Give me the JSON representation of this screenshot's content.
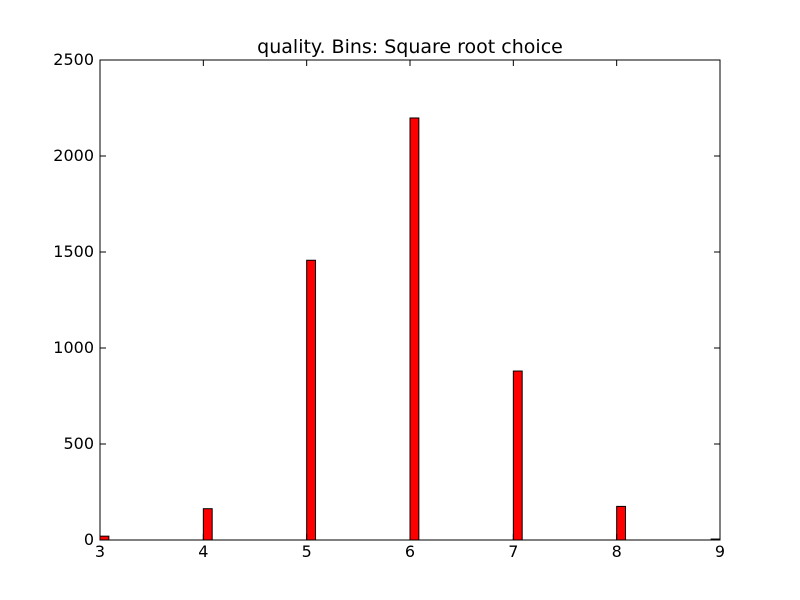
{
  "chart_data": {
    "type": "bar",
    "title": "quality. Bins: Square root choice",
    "xlabel": "",
    "ylabel": "",
    "xlim": [
      3,
      9
    ],
    "ylim": [
      0,
      2500
    ],
    "x_ticks": [
      "3",
      "4",
      "5",
      "6",
      "7",
      "8",
      "9"
    ],
    "y_ticks": [
      "0",
      "500",
      "1000",
      "1500",
      "2000",
      "2500"
    ],
    "bin_width": 0.0857,
    "bars": [
      {
        "x": 3.0,
        "value": 20
      },
      {
        "x": 4.0,
        "value": 163
      },
      {
        "x": 5.0,
        "value": 1457
      },
      {
        "x": 6.0,
        "value": 2198
      },
      {
        "x": 7.0,
        "value": 880
      },
      {
        "x": 8.0,
        "value": 175
      },
      {
        "x": 8.914,
        "value": 5
      }
    ],
    "bar_color": "#ff0000",
    "edge_color": "#000000",
    "grid": false
  }
}
